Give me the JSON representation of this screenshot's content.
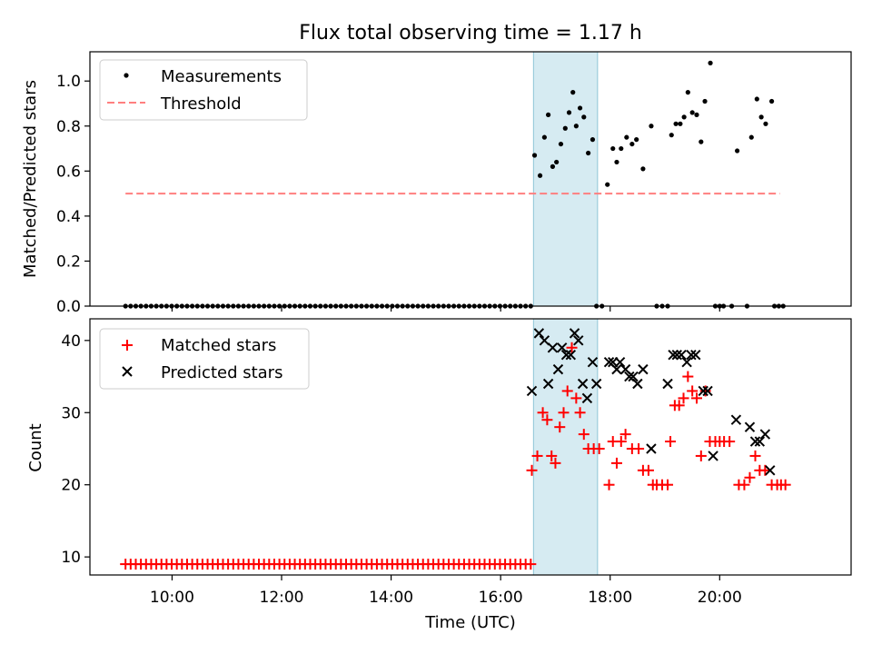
{
  "title": "Flux total observing time = 1.17 h",
  "chart_data": [
    {
      "type": "scatter",
      "panel": "top",
      "ylabel": "Matched/Predicted stars",
      "xlabel": "",
      "xlim": [
        8.5,
        22.4
      ],
      "ylim": [
        0,
        1.13
      ],
      "yticks": [
        0.0,
        0.2,
        0.4,
        0.6,
        0.8,
        1.0
      ],
      "ytick_labels": [
        "0.0",
        "0.2",
        "0.4",
        "0.6",
        "0.8",
        "1.0"
      ],
      "highlight_span": [
        16.6,
        17.77
      ],
      "threshold": {
        "name": "Threshold",
        "value": 0.5,
        "x_range": [
          9.15,
          21.1
        ],
        "color": "#ff7f7f"
      },
      "legend": [
        {
          "label": "Measurements",
          "marker": "dot",
          "color": "#000000"
        },
        {
          "label": "Threshold",
          "marker": "dash",
          "color": "#ff7f7f"
        }
      ],
      "legend_position": "top-left",
      "measurements_zero": {
        "x_start": 9.15,
        "x_end": 16.55,
        "count": 80,
        "y": 0
      },
      "measurements": [
        [
          16.62,
          0.67
        ],
        [
          16.72,
          0.58
        ],
        [
          16.8,
          0.75
        ],
        [
          16.87,
          0.85
        ],
        [
          16.95,
          0.62
        ],
        [
          17.02,
          0.64
        ],
        [
          17.1,
          0.72
        ],
        [
          17.18,
          0.79
        ],
        [
          17.25,
          0.86
        ],
        [
          17.32,
          0.95
        ],
        [
          17.38,
          0.8
        ],
        [
          17.45,
          0.88
        ],
        [
          17.52,
          0.84
        ],
        [
          17.6,
          0.68
        ],
        [
          17.68,
          0.74
        ],
        [
          17.75,
          0.0
        ],
        [
          17.85,
          0.0
        ],
        [
          17.95,
          0.54
        ],
        [
          18.05,
          0.7
        ],
        [
          18.12,
          0.64
        ],
        [
          18.2,
          0.7
        ],
        [
          18.3,
          0.75
        ],
        [
          18.4,
          0.72
        ],
        [
          18.48,
          0.74
        ],
        [
          18.6,
          0.61
        ],
        [
          18.75,
          0.8
        ],
        [
          18.85,
          0.0
        ],
        [
          18.95,
          0.0
        ],
        [
          19.05,
          0.0
        ],
        [
          19.12,
          0.76
        ],
        [
          19.2,
          0.81
        ],
        [
          19.28,
          0.81
        ],
        [
          19.35,
          0.84
        ],
        [
          19.42,
          0.95
        ],
        [
          19.5,
          0.86
        ],
        [
          19.58,
          0.85
        ],
        [
          19.66,
          0.73
        ],
        [
          19.73,
          0.91
        ],
        [
          19.83,
          1.08
        ],
        [
          19.92,
          0.0
        ],
        [
          20.0,
          0.0
        ],
        [
          20.07,
          0.0
        ],
        [
          20.22,
          0.0
        ],
        [
          20.32,
          0.69
        ],
        [
          20.5,
          0.0
        ],
        [
          20.58,
          0.75
        ],
        [
          20.68,
          0.92
        ],
        [
          20.76,
          0.84
        ],
        [
          20.84,
          0.81
        ],
        [
          20.95,
          0.91
        ],
        [
          21.0,
          0.0
        ],
        [
          21.08,
          0.0
        ],
        [
          21.16,
          0.0
        ]
      ]
    },
    {
      "type": "scatter",
      "panel": "bottom",
      "ylabel": "Count",
      "xlabel": "Time (UTC)",
      "xlim": [
        8.5,
        22.4
      ],
      "ylim": [
        7.5,
        43
      ],
      "yticks": [
        10,
        20,
        30,
        40
      ],
      "ytick_labels": [
        "10",
        "20",
        "30",
        "40"
      ],
      "xticks": [
        10,
        12,
        14,
        16,
        18,
        20
      ],
      "xtick_labels": [
        "10:00",
        "12:00",
        "14:00",
        "16:00",
        "18:00",
        "20:00"
      ],
      "highlight_span": [
        16.6,
        17.77
      ],
      "legend": [
        {
          "label": "Matched stars",
          "marker": "plus",
          "color": "#ff0000"
        },
        {
          "label": "Predicted stars",
          "marker": "x",
          "color": "#000000"
        }
      ],
      "legend_position": "top-left",
      "matched_baseline": {
        "x_start": 9.15,
        "x_end": 16.55,
        "count": 80,
        "y": 9
      },
      "series": [
        {
          "name": "Matched stars",
          "marker": "plus",
          "color": "#ff0000",
          "points": [
            [
              16.57,
              22
            ],
            [
              16.67,
              24
            ],
            [
              16.77,
              30
            ],
            [
              16.85,
              29
            ],
            [
              16.93,
              24
            ],
            [
              17.0,
              23
            ],
            [
              17.08,
              28
            ],
            [
              17.15,
              30
            ],
            [
              17.22,
              33
            ],
            [
              17.3,
              39
            ],
            [
              17.38,
              32
            ],
            [
              17.45,
              30
            ],
            [
              17.52,
              27
            ],
            [
              17.6,
              25
            ],
            [
              17.7,
              25
            ],
            [
              17.8,
              25
            ],
            [
              17.98,
              20
            ],
            [
              18.05,
              26
            ],
            [
              18.12,
              23
            ],
            [
              18.2,
              26
            ],
            [
              18.28,
              27
            ],
            [
              18.4,
              25
            ],
            [
              18.52,
              25
            ],
            [
              18.6,
              22
            ],
            [
              18.7,
              22
            ],
            [
              18.78,
              20
            ],
            [
              18.85,
              20
            ],
            [
              18.95,
              20
            ],
            [
              19.05,
              20
            ],
            [
              19.1,
              26
            ],
            [
              19.18,
              31
            ],
            [
              19.26,
              31
            ],
            [
              19.34,
              32
            ],
            [
              19.42,
              35
            ],
            [
              19.5,
              33
            ],
            [
              19.58,
              32
            ],
            [
              19.66,
              24
            ],
            [
              19.74,
              33
            ],
            [
              19.82,
              26
            ],
            [
              19.92,
              26
            ],
            [
              20.0,
              26
            ],
            [
              20.08,
              26
            ],
            [
              20.18,
              26
            ],
            [
              20.35,
              20
            ],
            [
              20.45,
              20
            ],
            [
              20.55,
              21
            ],
            [
              20.65,
              24
            ],
            [
              20.73,
              22
            ],
            [
              20.83,
              22
            ],
            [
              20.95,
              20
            ],
            [
              21.05,
              20
            ],
            [
              21.12,
              20
            ],
            [
              21.2,
              20
            ]
          ]
        },
        {
          "name": "Predicted stars",
          "marker": "x",
          "color": "#000000",
          "points": [
            [
              16.57,
              33
            ],
            [
              16.7,
              41
            ],
            [
              16.8,
              40
            ],
            [
              16.87,
              34
            ],
            [
              16.95,
              39
            ],
            [
              17.05,
              36
            ],
            [
              17.12,
              39
            ],
            [
              17.2,
              38
            ],
            [
              17.28,
              38
            ],
            [
              17.35,
              41
            ],
            [
              17.42,
              40
            ],
            [
              17.5,
              34
            ],
            [
              17.58,
              32
            ],
            [
              17.68,
              37
            ],
            [
              17.75,
              34
            ],
            [
              17.98,
              37
            ],
            [
              18.05,
              37
            ],
            [
              18.12,
              36
            ],
            [
              18.18,
              37
            ],
            [
              18.28,
              36
            ],
            [
              18.35,
              35
            ],
            [
              18.42,
              35
            ],
            [
              18.5,
              34
            ],
            [
              18.6,
              36
            ],
            [
              18.75,
              25
            ],
            [
              19.05,
              34
            ],
            [
              19.15,
              38
            ],
            [
              19.22,
              38
            ],
            [
              19.3,
              38
            ],
            [
              19.4,
              37
            ],
            [
              19.48,
              38
            ],
            [
              19.56,
              38
            ],
            [
              19.7,
              33
            ],
            [
              19.78,
              33
            ],
            [
              19.88,
              24
            ],
            [
              20.3,
              29
            ],
            [
              20.55,
              28
            ],
            [
              20.65,
              26
            ],
            [
              20.73,
              26
            ],
            [
              20.83,
              27
            ],
            [
              20.92,
              22
            ]
          ]
        }
      ]
    }
  ]
}
